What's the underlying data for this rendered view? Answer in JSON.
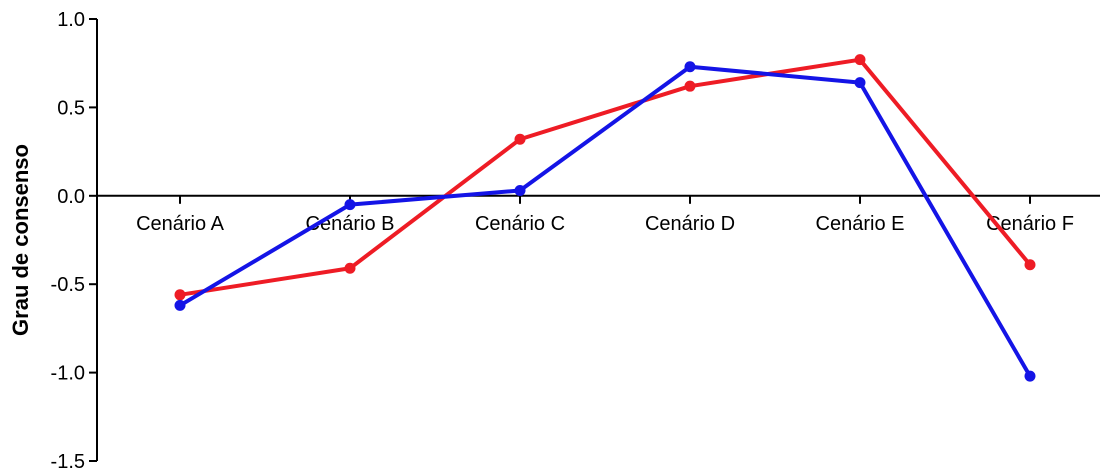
{
  "chart_data": {
    "type": "line",
    "title": "",
    "xlabel": "",
    "ylabel": "Grau de consenso",
    "categories": [
      "Cenário A",
      "Cenário B",
      "Cenário C",
      "Cenário D",
      "Cenário E",
      "Cenário F"
    ],
    "ylim": [
      -1.5,
      1.0
    ],
    "yticks": [
      1.0,
      0.5,
      0.0,
      -0.5,
      -1.0,
      -1.5
    ],
    "ytick_labels": [
      "1.0",
      "0.5",
      "0.0",
      "-0.5",
      "-1.0",
      "-1.5"
    ],
    "grid": false,
    "legend": "none",
    "series": [
      {
        "color": "#ee1c25",
        "values": [
          -0.56,
          -0.41,
          0.32,
          0.62,
          0.77,
          -0.39
        ]
      },
      {
        "color": "#1414e6",
        "values": [
          -0.62,
          -0.05,
          0.03,
          0.73,
          0.64,
          -1.02
        ]
      }
    ]
  }
}
